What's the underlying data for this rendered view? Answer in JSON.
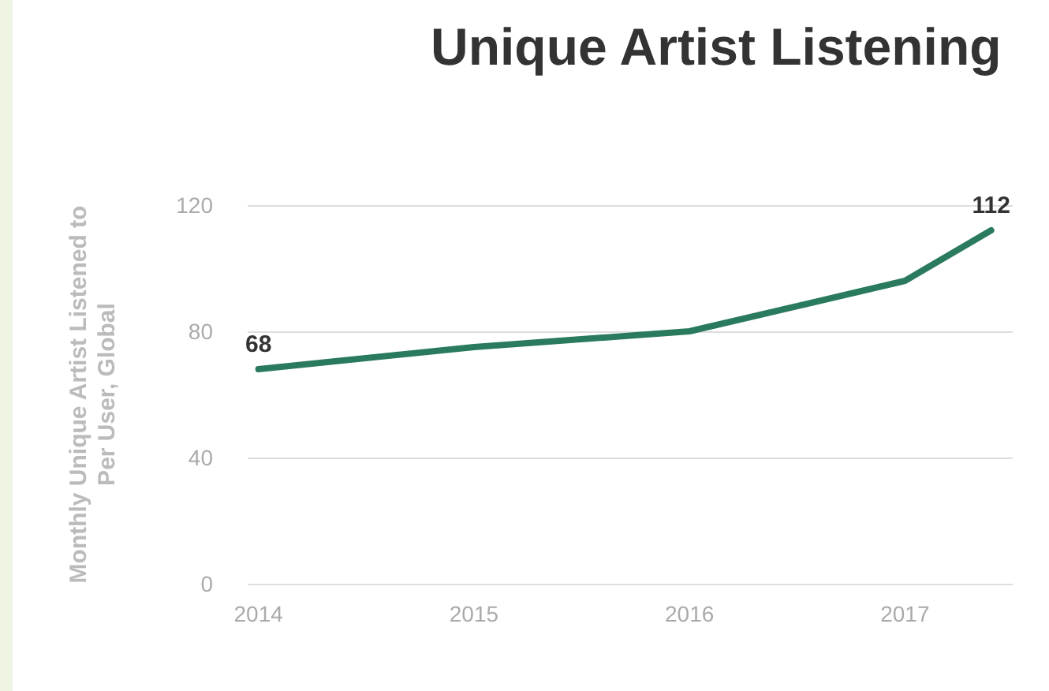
{
  "chart_data": {
    "type": "line",
    "title": "Unique Artist Listening",
    "ylabel": "Monthly Unique Artist Listened to\nPer User, Global",
    "x": [
      2014,
      2015,
      2016,
      2017,
      2017.4
    ],
    "series": [
      {
        "color": "#2a7a5e",
        "values": [
          68,
          75,
          80,
          96,
          112
        ],
        "value_labels": [
          "68",
          null,
          null,
          null,
          "112"
        ]
      }
    ],
    "xlim": [
      2013.95,
      2017.5
    ],
    "xticks": [
      2014,
      2015,
      2016,
      2017
    ],
    "ylim": [
      0,
      120
    ],
    "yticks": [
      0,
      40,
      80,
      120
    ],
    "grid": "y",
    "marker": "none",
    "line_style": "solid"
  }
}
